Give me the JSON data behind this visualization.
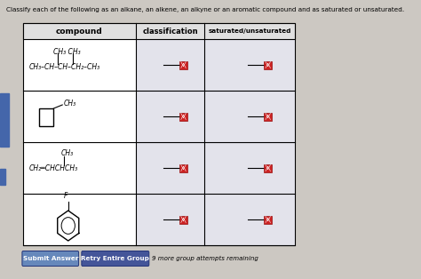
{
  "title": "Classify each of the following as an alkane, an alkene, an alkyne or an aromatic compound and as saturated or unsaturated.",
  "col_headers": [
    "compound",
    "classification",
    "saturated/unsaturated"
  ],
  "background": "#ccc8c2",
  "table_bg": "#ffffff",
  "header_bg": "#e0e0e0",
  "button1_text": "Submit Answer",
  "button2_text": "Retry Entire Group",
  "footer_text": "9 more group attempts remaining",
  "button1_color": "#6688bb",
  "button2_color": "#445599",
  "answer_box_color": "#cc2222",
  "left_bar_color": "#4466aa",
  "stripe_color": "#c8c8d8"
}
